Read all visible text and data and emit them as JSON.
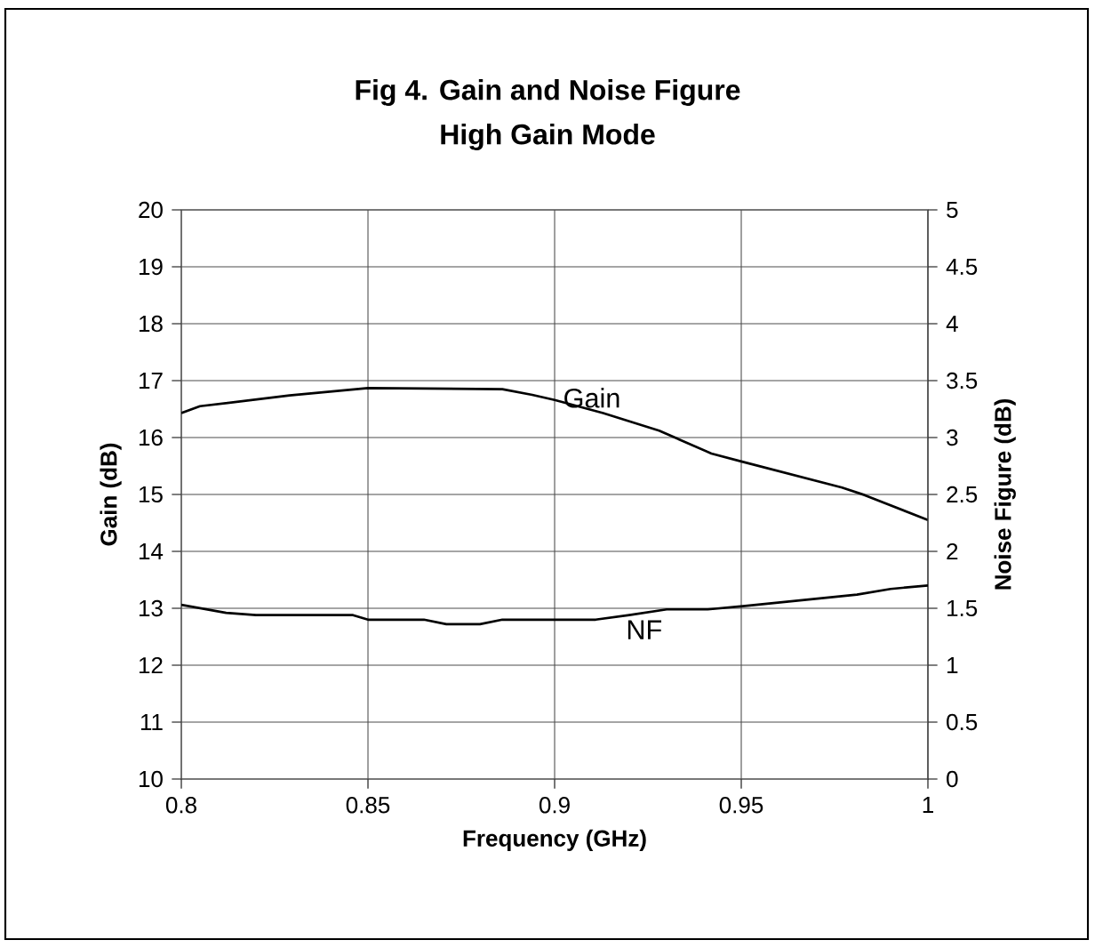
{
  "chart_data": {
    "type": "line",
    "title": "Fig 4. Gain and Noise Figure",
    "subtitle": "High Gain Mode",
    "xlabel": "Frequency (GHz)",
    "ylabel": "Gain (dB)",
    "y2label": "Noise Figure (dB)",
    "xlim": [
      0.8,
      1
    ],
    "xticks": [
      0.8,
      0.85,
      0.9,
      0.95,
      1
    ],
    "ylim": [
      10,
      20
    ],
    "yticks": [
      10,
      11,
      12,
      13,
      14,
      15,
      16,
      17,
      18,
      19,
      20
    ],
    "y2lim": [
      0,
      5
    ],
    "y2ticks": [
      0,
      0.5,
      1,
      1.5,
      2,
      2.5,
      3,
      3.5,
      4,
      4.5,
      5
    ],
    "grid": true,
    "series": [
      {
        "name": "Gain",
        "color": "#000000",
        "x": [
          0.8,
          0.805,
          0.829,
          0.85,
          0.886,
          0.894,
          0.9,
          0.913,
          0.928,
          0.942,
          0.95,
          0.977,
          0.983,
          1.0
        ],
        "values": [
          16.43,
          16.55,
          16.74,
          16.87,
          16.85,
          16.75,
          16.66,
          16.43,
          16.12,
          15.72,
          15.58,
          15.12,
          14.99,
          14.55
        ]
      },
      {
        "name": "NF",
        "axis": "y2",
        "color": "#000000",
        "x": [
          0.8,
          0.812,
          0.82,
          0.846,
          0.85,
          0.865,
          0.871,
          0.88,
          0.886,
          0.911,
          0.92,
          0.93,
          0.941,
          0.951,
          0.981,
          0.99,
          1.0
        ],
        "values": [
          1.53,
          1.46,
          1.44,
          1.44,
          1.4,
          1.4,
          1.36,
          1.36,
          1.4,
          1.4,
          1.44,
          1.49,
          1.49,
          1.52,
          1.62,
          1.67,
          1.7
        ]
      }
    ]
  }
}
